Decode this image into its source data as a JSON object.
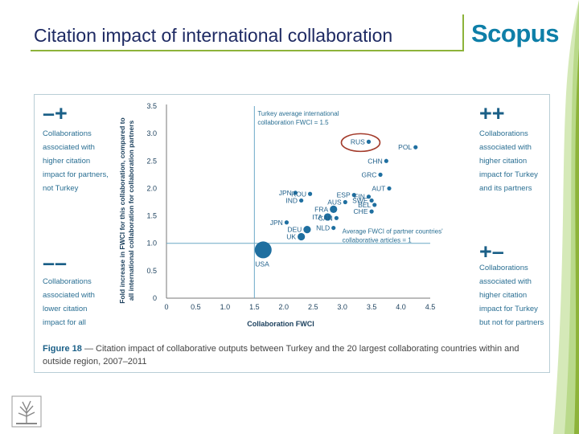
{
  "slide": {
    "title": "Citation impact of international collaboration",
    "brand": "Scopus",
    "logo_name": "elsevier-tree-logo"
  },
  "quadrants": {
    "top_left": {
      "sign": "–+",
      "lines": [
        "Collaborations",
        "associated with",
        "higher citation",
        "impact for partners,",
        "not Turkey"
      ]
    },
    "top_right": {
      "sign": "++",
      "lines": [
        "Collaborations",
        "associated with",
        "higher citation",
        "impact for Turkey",
        "and its partners"
      ]
    },
    "bottom_left": {
      "sign": "––",
      "lines": [
        "Collaborations",
        "associated with",
        "lower citation",
        "impact for all"
      ]
    },
    "bottom_right": {
      "sign": "+–",
      "lines": [
        "Collaborations",
        "associated with",
        "higher citation",
        "impact for Turkey",
        "but not for partners"
      ]
    }
  },
  "caption": {
    "label": "Figure 18",
    "text": " — Citation impact of collaborative outputs between Turkey and the 20 largest collaborating countries within and outside region, 2007–2011"
  },
  "chart_data": {
    "type": "scatter",
    "xlabel": "Collaboration FWCI",
    "ylabel_lines": [
      "Fold increase in FWCI for this collaboration, compared to",
      "all international collaboration for collaboration partners"
    ],
    "xlim": [
      0,
      4.5
    ],
    "ylim": [
      0,
      3.5
    ],
    "xticks": [
      0,
      0.5,
      1.0,
      1.5,
      2.0,
      2.5,
      3.0,
      3.5,
      4.0,
      4.5
    ],
    "yticks": [
      0,
      0.5,
      1.0,
      1.5,
      2.0,
      2.5,
      3.0,
      3.5
    ],
    "grid": false,
    "reference_lines": {
      "vertical": {
        "x": 1.5,
        "label_lines": [
          "Turkey average international",
          "collaboration FWCI = 1.5"
        ]
      },
      "horizontal": {
        "y": 1.0,
        "label_lines": [
          "Average FWCI of partner countries'",
          "collaborative articles = 1"
        ]
      }
    },
    "highlight": "RUS",
    "points": [
      {
        "label": "USA",
        "x": 1.65,
        "y": 0.88,
        "size": "large"
      },
      {
        "label": "RUS",
        "x": 3.45,
        "y": 2.85,
        "size": "small"
      },
      {
        "label": "POL",
        "x": 4.25,
        "y": 2.75,
        "size": "small"
      },
      {
        "label": "CHN",
        "x": 3.75,
        "y": 2.5,
        "size": "small"
      },
      {
        "label": "GRC",
        "x": 3.65,
        "y": 2.25,
        "size": "small"
      },
      {
        "label": "AUT",
        "x": 3.8,
        "y": 2.0,
        "size": "small"
      },
      {
        "label": "JPN",
        "x": 2.2,
        "y": 1.92,
        "size": "small"
      },
      {
        "label": "ROU",
        "x": 2.45,
        "y": 1.9,
        "size": "small"
      },
      {
        "label": "IND",
        "x": 2.3,
        "y": 1.78,
        "size": "small"
      },
      {
        "label": "ESP",
        "x": 3.2,
        "y": 1.88,
        "size": "small"
      },
      {
        "label": "FIN",
        "x": 3.45,
        "y": 1.85,
        "size": "small"
      },
      {
        "label": "AUS",
        "x": 3.05,
        "y": 1.75,
        "size": "small"
      },
      {
        "label": "SWE",
        "x": 3.5,
        "y": 1.78,
        "size": "small"
      },
      {
        "label": "BEL",
        "x": 3.55,
        "y": 1.7,
        "size": "small"
      },
      {
        "label": "FRA",
        "x": 2.85,
        "y": 1.62,
        "size": "medium"
      },
      {
        "label": "CHE",
        "x": 3.5,
        "y": 1.58,
        "size": "small"
      },
      {
        "label": "ITA",
        "x": 2.75,
        "y": 1.48,
        "size": "medium"
      },
      {
        "label": "CAN",
        "x": 2.9,
        "y": 1.46,
        "size": "small"
      },
      {
        "label": "JPN",
        "x": 2.05,
        "y": 1.38,
        "size": "small"
      },
      {
        "label": "DEU",
        "x": 2.4,
        "y": 1.25,
        "size": "medium"
      },
      {
        "label": "NLD",
        "x": 2.85,
        "y": 1.28,
        "size": "small"
      },
      {
        "label": "UK",
        "x": 2.3,
        "y": 1.12,
        "size": "medium"
      }
    ]
  }
}
